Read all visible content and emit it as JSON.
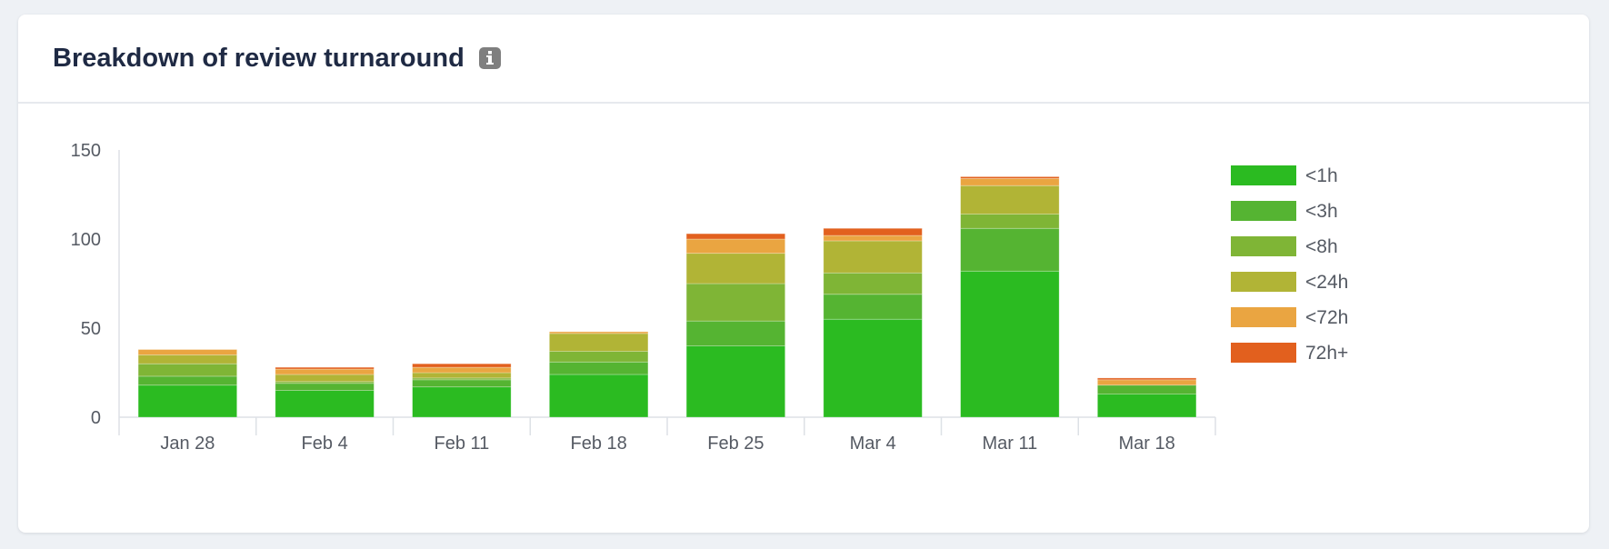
{
  "header": {
    "title": "Breakdown of review turnaround",
    "info_icon": "info-icon"
  },
  "chart_data": {
    "type": "bar",
    "stacked": true,
    "title": "",
    "xlabel": "",
    "ylabel": "",
    "ylim": [
      0,
      150
    ],
    "yticks": [
      0,
      50,
      100,
      150
    ],
    "grid": false,
    "legend_position": "right",
    "categories": [
      "Jan 28",
      "Feb 4",
      "Feb 11",
      "Feb 18",
      "Feb 25",
      "Mar 4",
      "Mar 11",
      "Mar 18"
    ],
    "series": [
      {
        "name": "<1h",
        "color": "#2bbb21",
        "values": [
          18,
          15,
          17,
          24,
          40,
          55,
          82,
          13
        ]
      },
      {
        "name": "<3h",
        "color": "#55b432",
        "values": [
          5,
          4,
          4,
          7,
          14,
          14,
          24,
          5
        ]
      },
      {
        "name": "<8h",
        "color": "#7fb536",
        "values": [
          7,
          1,
          1,
          6,
          21,
          12,
          8,
          0
        ]
      },
      {
        "name": "<24h",
        "color": "#b1b436",
        "values": [
          5,
          4,
          3,
          10,
          17,
          18,
          16,
          0
        ]
      },
      {
        "name": "<72h",
        "color": "#eaa541",
        "values": [
          3,
          3,
          3,
          1,
          8,
          3,
          4,
          3
        ]
      },
      {
        "name": "72h+",
        "color": "#e2601e",
        "values": [
          0,
          1,
          2,
          0,
          3,
          4,
          1,
          1
        ]
      }
    ]
  }
}
